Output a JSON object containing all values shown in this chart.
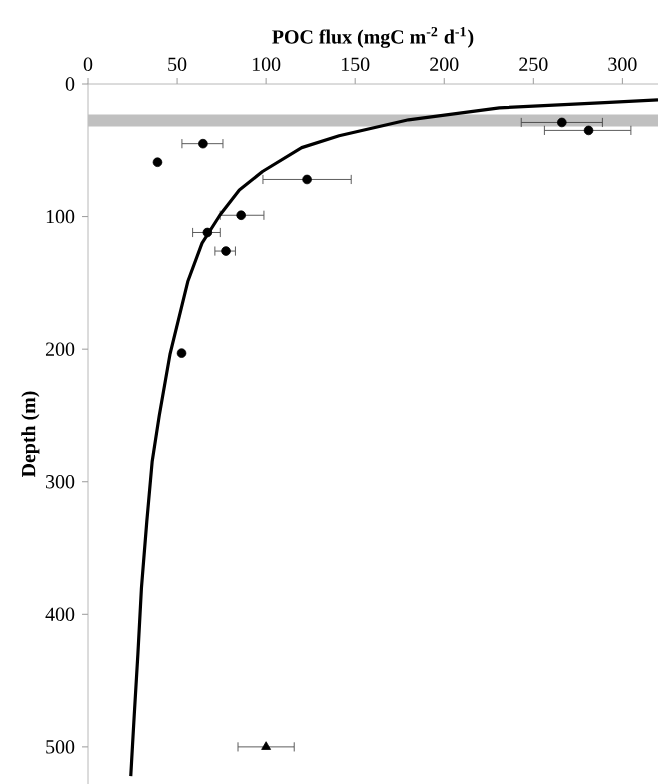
{
  "chart_data": {
    "type": "scatter",
    "xlabel": "**POC flux (mgC m$^{-2}$ d$^{-1}$)**",
    "ylabel": "**Depth (m)**",
    "xlim": [
      0,
      320
    ],
    "ylim": [
      528,
      0
    ],
    "xticks": [
      0,
      50,
      100,
      150,
      200,
      250,
      300
    ],
    "yticks": [
      0,
      100,
      200,
      300,
      400,
      500
    ],
    "bands": [
      {
        "axis": "y",
        "from": 23,
        "to": 32,
        "color": "#c0c0c0"
      }
    ],
    "series": [
      {
        "marker": "circle",
        "color": "#000000",
        "x": [
          266,
          281,
          64.5,
          39,
          123,
          86,
          67,
          77.5,
          52.5
        ],
        "values": [
          29,
          35,
          45,
          59,
          72,
          99,
          112,
          126,
          203
        ],
        "xerrors": [
          [
            243,
            289
          ],
          [
            256,
            305
          ],
          [
            52.5,
            76
          ],
          null,
          [
            98,
            148
          ],
          [
            74,
            99
          ],
          [
            58.5,
            74.5
          ],
          [
            71,
            83
          ],
          null
        ]
      },
      {
        "marker": "triangle",
        "color": "#000000",
        "x": [
          100
        ],
        "values": [
          500
        ],
        "xerrors": [
          [
            84,
            116
          ]
        ]
      },
      {
        "type": "line",
        "marker": "none",
        "line_style": "solid",
        "color": "#000000",
        "x": [
          320,
          290,
          231,
          180,
          141,
          120,
          98,
          85,
          74,
          64,
          56,
          46,
          40,
          36,
          33,
          30,
          28,
          26,
          24
        ],
        "values": [
          12,
          14,
          18,
          27,
          39,
          48,
          66,
          80,
          99,
          120,
          149,
          204,
          250,
          285,
          330,
          380,
          430,
          475,
          522
        ]
      }
    ]
  }
}
